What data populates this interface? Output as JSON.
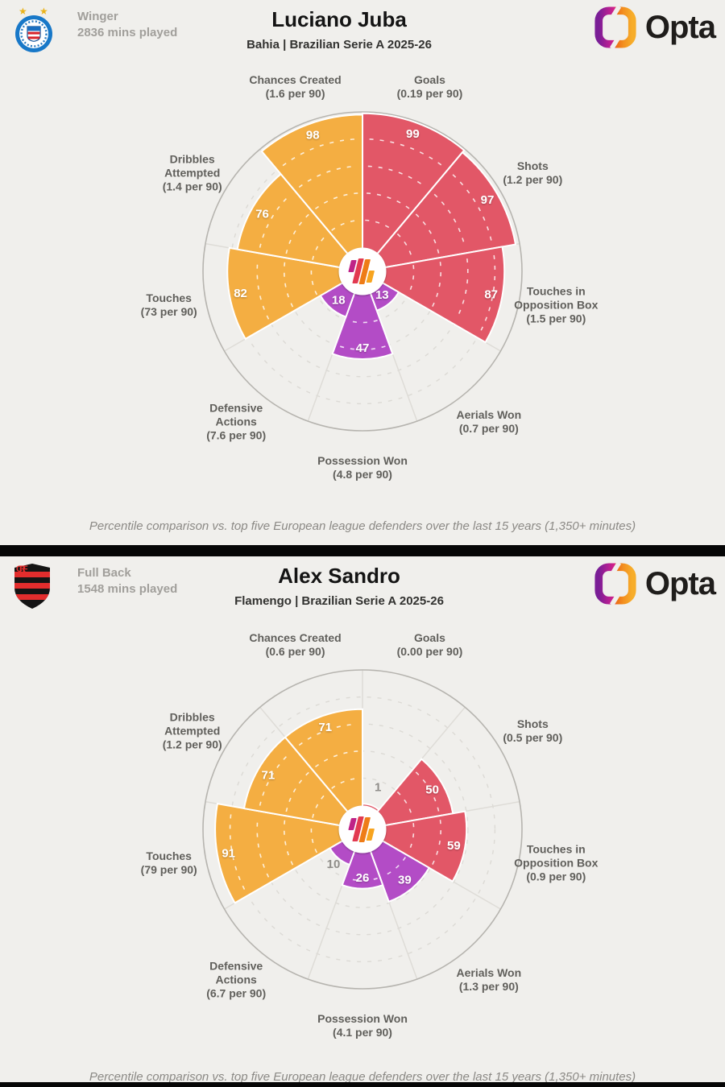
{
  "brand": {
    "name": "Opta"
  },
  "colors": {
    "background": "#f0efec",
    "divider": "#060606",
    "attack": "#e25767",
    "possession": "#f4ae42",
    "defence": "#b34cc6",
    "grid_ring": "#dcdad5",
    "outer_ring": "#b6b4af",
    "value_text": "#ffffff",
    "small_value_text": "#908e8a"
  },
  "cards": [
    {
      "badge": "Bahia club crest",
      "position": "Winger",
      "minutes_played": "2836 mins played",
      "player_name": "Luciano Juba",
      "subtitle": "Bahia | Brazilian Serie A 2025-26",
      "footnote": "Percentile comparison vs. top five European league defenders over the last 15 years (1,350+ minutes)"
    },
    {
      "badge": "Flamengo club crest",
      "position": "Full Back",
      "minutes_played": "1548 mins played",
      "player_name": "Alex Sandro",
      "subtitle": "Flamengo | Brazilian Serie A 2025-26",
      "footnote": "Percentile comparison vs. top five European league defenders over the last 15 years (1,350+ minutes)"
    }
  ],
  "chart_data": [
    {
      "type": "radial-percentile-pizza",
      "title": "Luciano Juba",
      "subtitle": "Bahia | Brazilian Serie A 2025-26",
      "scale": [
        0,
        100
      ],
      "grid_rings_percent": [
        20,
        40,
        60,
        80
      ],
      "categories": [
        "Goals",
        "Shots",
        "Touches in Opposition Box",
        "Aerials Won",
        "Possession Won",
        "Defensive Actions",
        "Touches",
        "Dribbles Attempted",
        "Chances Created"
      ],
      "label_lines": [
        [
          "Goals"
        ],
        [
          "Shots"
        ],
        [
          "Touches in",
          "Opposition Box"
        ],
        [
          "Aerials Won"
        ],
        [
          "Possession Won"
        ],
        [
          "Defensive",
          "Actions"
        ],
        [
          "Touches"
        ],
        [
          "Dribbles",
          "Attempted"
        ],
        [
          "Chances Created"
        ]
      ],
      "per90": [
        "(0.19 per 90)",
        "(1.2 per 90)",
        "(1.5 per 90)",
        "(0.7 per 90)",
        "(4.8 per 90)",
        "(7.6 per 90)",
        "(73 per 90)",
        "(1.4 per 90)",
        "(1.6 per 90)"
      ],
      "values": [
        99,
        97,
        87,
        13,
        47,
        18,
        82,
        76,
        98
      ],
      "groups": [
        "attack",
        "attack",
        "attack",
        "defence",
        "defence",
        "defence",
        "possession",
        "possession",
        "possession"
      ],
      "group_colors": {
        "attack": "#e25767",
        "possession": "#f4ae42",
        "defence": "#b34cc6"
      }
    },
    {
      "type": "radial-percentile-pizza",
      "title": "Alex Sandro",
      "subtitle": "Flamengo | Brazilian Serie A 2025-26",
      "scale": [
        0,
        100
      ],
      "grid_rings_percent": [
        20,
        40,
        60,
        80
      ],
      "categories": [
        "Goals",
        "Shots",
        "Touches in Opposition Box",
        "Aerials Won",
        "Possession Won",
        "Defensive Actions",
        "Touches",
        "Dribbles Attempted",
        "Chances Created"
      ],
      "label_lines": [
        [
          "Goals"
        ],
        [
          "Shots"
        ],
        [
          "Touches in",
          "Opposition Box"
        ],
        [
          "Aerials Won"
        ],
        [
          "Possession Won"
        ],
        [
          "Defensive",
          "Actions"
        ],
        [
          "Touches"
        ],
        [
          "Dribbles",
          "Attempted"
        ],
        [
          "Chances Created"
        ]
      ],
      "per90": [
        "(0.00 per 90)",
        "(0.5 per 90)",
        "(0.9 per 90)",
        "(1.3 per 90)",
        "(4.1 per 90)",
        "(6.7 per 90)",
        "(79 per 90)",
        "(1.2 per 90)",
        "(0.6 per 90)"
      ],
      "values": [
        1,
        50,
        59,
        39,
        26,
        10,
        91,
        71,
        71
      ],
      "groups": [
        "attack",
        "attack",
        "attack",
        "defence",
        "defence",
        "defence",
        "possession",
        "possession",
        "possession"
      ],
      "group_colors": {
        "attack": "#e25767",
        "possession": "#f4ae42",
        "defence": "#b34cc6"
      }
    }
  ]
}
